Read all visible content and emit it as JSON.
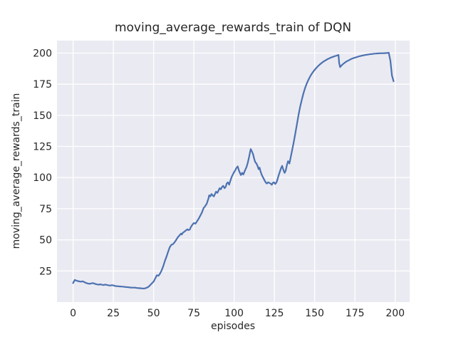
{
  "figure": {
    "background": "#ffffff"
  },
  "chart_data": {
    "type": "line",
    "title": "moving_average_rewards_train of DQN",
    "xlabel": "episodes",
    "ylabel": "moving_average_rewards_train",
    "xlim": [
      -10,
      209
    ],
    "ylim": [
      0,
      210
    ],
    "x_ticks": [
      0,
      25,
      50,
      75,
      100,
      125,
      150,
      175,
      200
    ],
    "y_ticks": [
      25,
      50,
      75,
      100,
      125,
      150,
      175,
      200
    ],
    "grid": "on",
    "legend": "none",
    "plot_background": "#EAEAF2",
    "grid_color": "#FFFFFF",
    "line_color": "#4C72B0",
    "text_color": "#262626",
    "series": [
      {
        "name": "moving_average_rewards_train",
        "points": [
          [
            0,
            15.3
          ],
          [
            1,
            17.8
          ],
          [
            2,
            17.3
          ],
          [
            3,
            16.9
          ],
          [
            4,
            16.6
          ],
          [
            5,
            16.4
          ],
          [
            6,
            16.7
          ],
          [
            7,
            16
          ],
          [
            8,
            15.4
          ],
          [
            9,
            15
          ],
          [
            10,
            14.7
          ],
          [
            11,
            14.9
          ],
          [
            12,
            15.3
          ],
          [
            13,
            15
          ],
          [
            14,
            14.5
          ],
          [
            15,
            14.2
          ],
          [
            16,
            14
          ],
          [
            17,
            14.3
          ],
          [
            18,
            13.9
          ],
          [
            19,
            13.7
          ],
          [
            20,
            14.1
          ],
          [
            21,
            13.8
          ],
          [
            22,
            13.5
          ],
          [
            23,
            13.3
          ],
          [
            24,
            13.6
          ],
          [
            25,
            13.4
          ],
          [
            26,
            13
          ],
          [
            27,
            12.8
          ],
          [
            28,
            12.7
          ],
          [
            29,
            12.6
          ],
          [
            30,
            12.5
          ],
          [
            31,
            12.4
          ],
          [
            32,
            12.2
          ],
          [
            33,
            12.1
          ],
          [
            34,
            12
          ],
          [
            35,
            11.8
          ],
          [
            36,
            11.7
          ],
          [
            37,
            11.6
          ],
          [
            38,
            11.6
          ],
          [
            39,
            11.5
          ],
          [
            40,
            11.3
          ],
          [
            41,
            11.2
          ],
          [
            42,
            11.1
          ],
          [
            43,
            11
          ],
          [
            44,
            10.9
          ],
          [
            45,
            11.2
          ],
          [
            46,
            11.7
          ],
          [
            47,
            12.5
          ],
          [
            48,
            13.8
          ],
          [
            49,
            15.2
          ],
          [
            50,
            16.5
          ],
          [
            51,
            19
          ],
          [
            52,
            21.5
          ],
          [
            53,
            21.2
          ],
          [
            54,
            23
          ],
          [
            55,
            25.5
          ],
          [
            56,
            29
          ],
          [
            57,
            33
          ],
          [
            58,
            36.5
          ],
          [
            59,
            40.5
          ],
          [
            60,
            44
          ],
          [
            61,
            46
          ],
          [
            62,
            46.5
          ],
          [
            63,
            48
          ],
          [
            64,
            50
          ],
          [
            65,
            52
          ],
          [
            66,
            53.5
          ],
          [
            67,
            55
          ],
          [
            67.5,
            54.3
          ],
          [
            68,
            55.5
          ],
          [
            69,
            56.5
          ],
          [
            70,
            57.5
          ],
          [
            71,
            58.5
          ],
          [
            71.5,
            57.8
          ],
          [
            72.5,
            58.3
          ],
          [
            73,
            60
          ],
          [
            74,
            62
          ],
          [
            75,
            63.5
          ],
          [
            76,
            63
          ],
          [
            77,
            65
          ],
          [
            78,
            67
          ],
          [
            79,
            69.5
          ],
          [
            80,
            72
          ],
          [
            81,
            75.5
          ],
          [
            82,
            77
          ],
          [
            83,
            79
          ],
          [
            83.5,
            81
          ],
          [
            84,
            83
          ],
          [
            84.5,
            85.8
          ],
          [
            85.2,
            84.9
          ],
          [
            85.9,
            86.8
          ],
          [
            86.6,
            85.8
          ],
          [
            87.4,
            84.9
          ],
          [
            88.1,
            86.8
          ],
          [
            88.8,
            88.7
          ],
          [
            89.6,
            87.7
          ],
          [
            90.3,
            89.6
          ],
          [
            91,
            91.5
          ],
          [
            91.7,
            90.6
          ],
          [
            92.5,
            92.5
          ],
          [
            93.2,
            93.4
          ],
          [
            94,
            91.5
          ],
          [
            94.7,
            92.5
          ],
          [
            95.4,
            95.3
          ],
          [
            96.1,
            96.2
          ],
          [
            96.9,
            94.3
          ],
          [
            97.6,
            97.2
          ],
          [
            98.3,
            100
          ],
          [
            99,
            102
          ],
          [
            100,
            104.5
          ],
          [
            100.6,
            105.7
          ],
          [
            101.3,
            107.6
          ],
          [
            102.2,
            109
          ],
          [
            103,
            105.5
          ],
          [
            104.2,
            102
          ],
          [
            105,
            103.8
          ],
          [
            105.7,
            102.5
          ],
          [
            106.8,
            106
          ],
          [
            107.7,
            108.5
          ],
          [
            108.5,
            112
          ],
          [
            109.2,
            116
          ],
          [
            109.8,
            120
          ],
          [
            110.3,
            122.9
          ],
          [
            111,
            121
          ],
          [
            111.7,
            118.9
          ],
          [
            112.4,
            115.2
          ],
          [
            113.1,
            112.4
          ],
          [
            113.8,
            111.4
          ],
          [
            114.5,
            109.5
          ],
          [
            115.2,
            106.8
          ],
          [
            115.8,
            108
          ],
          [
            116.5,
            104.5
          ],
          [
            117.2,
            102
          ],
          [
            118,
            100
          ],
          [
            118.8,
            98
          ],
          [
            119.5,
            96.3
          ],
          [
            120.3,
            95.2
          ],
          [
            121,
            96.2
          ],
          [
            121.9,
            95.7
          ],
          [
            122.6,
            95.2
          ],
          [
            123.4,
            94.2
          ],
          [
            124,
            95.8
          ],
          [
            124.7,
            96.2
          ],
          [
            125.5,
            94.9
          ],
          [
            126.3,
            96.2
          ],
          [
            127,
            99
          ],
          [
            127.7,
            102
          ],
          [
            128.4,
            104.7
          ],
          [
            129.1,
            107.5
          ],
          [
            129.8,
            109.4
          ],
          [
            130.5,
            106.5
          ],
          [
            131.3,
            103.8
          ],
          [
            132,
            105.6
          ],
          [
            132.8,
            110.3
          ],
          [
            133.5,
            113.2
          ],
          [
            134.3,
            111.3
          ],
          [
            135,
            115.5
          ],
          [
            136,
            122
          ],
          [
            137,
            128.5
          ],
          [
            138,
            135.5
          ],
          [
            139,
            143
          ],
          [
            140,
            150.3
          ],
          [
            141,
            157
          ],
          [
            142,
            162.5
          ],
          [
            143,
            167.5
          ],
          [
            144,
            171.8
          ],
          [
            145,
            175.2
          ],
          [
            146,
            178.2
          ],
          [
            147,
            180.8
          ],
          [
            148,
            183
          ],
          [
            149,
            184.9
          ],
          [
            150,
            186.5
          ],
          [
            151,
            188
          ],
          [
            152,
            189.4
          ],
          [
            153,
            190.6
          ],
          [
            154,
            191.7
          ],
          [
            155,
            192.7
          ],
          [
            156,
            193.6
          ],
          [
            157,
            194.4
          ],
          [
            158,
            195.1
          ],
          [
            159,
            195.7
          ],
          [
            160,
            196.3
          ],
          [
            161,
            196.8
          ],
          [
            162,
            197.3
          ],
          [
            163,
            197.7
          ],
          [
            164,
            198.1
          ],
          [
            164.8,
            198.5
          ],
          [
            165.2,
            192
          ],
          [
            165.8,
            188.7
          ],
          [
            166.5,
            189.8
          ],
          [
            167.2,
            190.7
          ],
          [
            168,
            191.6
          ],
          [
            169,
            192.6
          ],
          [
            170,
            193.4
          ],
          [
            171,
            194.1
          ],
          [
            172,
            194.8
          ],
          [
            173,
            195.4
          ],
          [
            174,
            195.9
          ],
          [
            175,
            196.3
          ],
          [
            176,
            196.7
          ],
          [
            177,
            197.1
          ],
          [
            178,
            197.5
          ],
          [
            179,
            197.8
          ],
          [
            180,
            198.1
          ],
          [
            181,
            198.4
          ],
          [
            182,
            198.6
          ],
          [
            183,
            198.8
          ],
          [
            184,
            199
          ],
          [
            185,
            199.2
          ],
          [
            186,
            199.3
          ],
          [
            187,
            199.5
          ],
          [
            188,
            199.6
          ],
          [
            189,
            199.7
          ],
          [
            190,
            199.8
          ],
          [
            191,
            199.8
          ],
          [
            192,
            199.9
          ],
          [
            193,
            199.9
          ],
          [
            194,
            200
          ],
          [
            195,
            200.1
          ],
          [
            196,
            200.3
          ],
          [
            197,
            194
          ],
          [
            198,
            182
          ],
          [
            199,
            177.3
          ]
        ]
      }
    ]
  }
}
